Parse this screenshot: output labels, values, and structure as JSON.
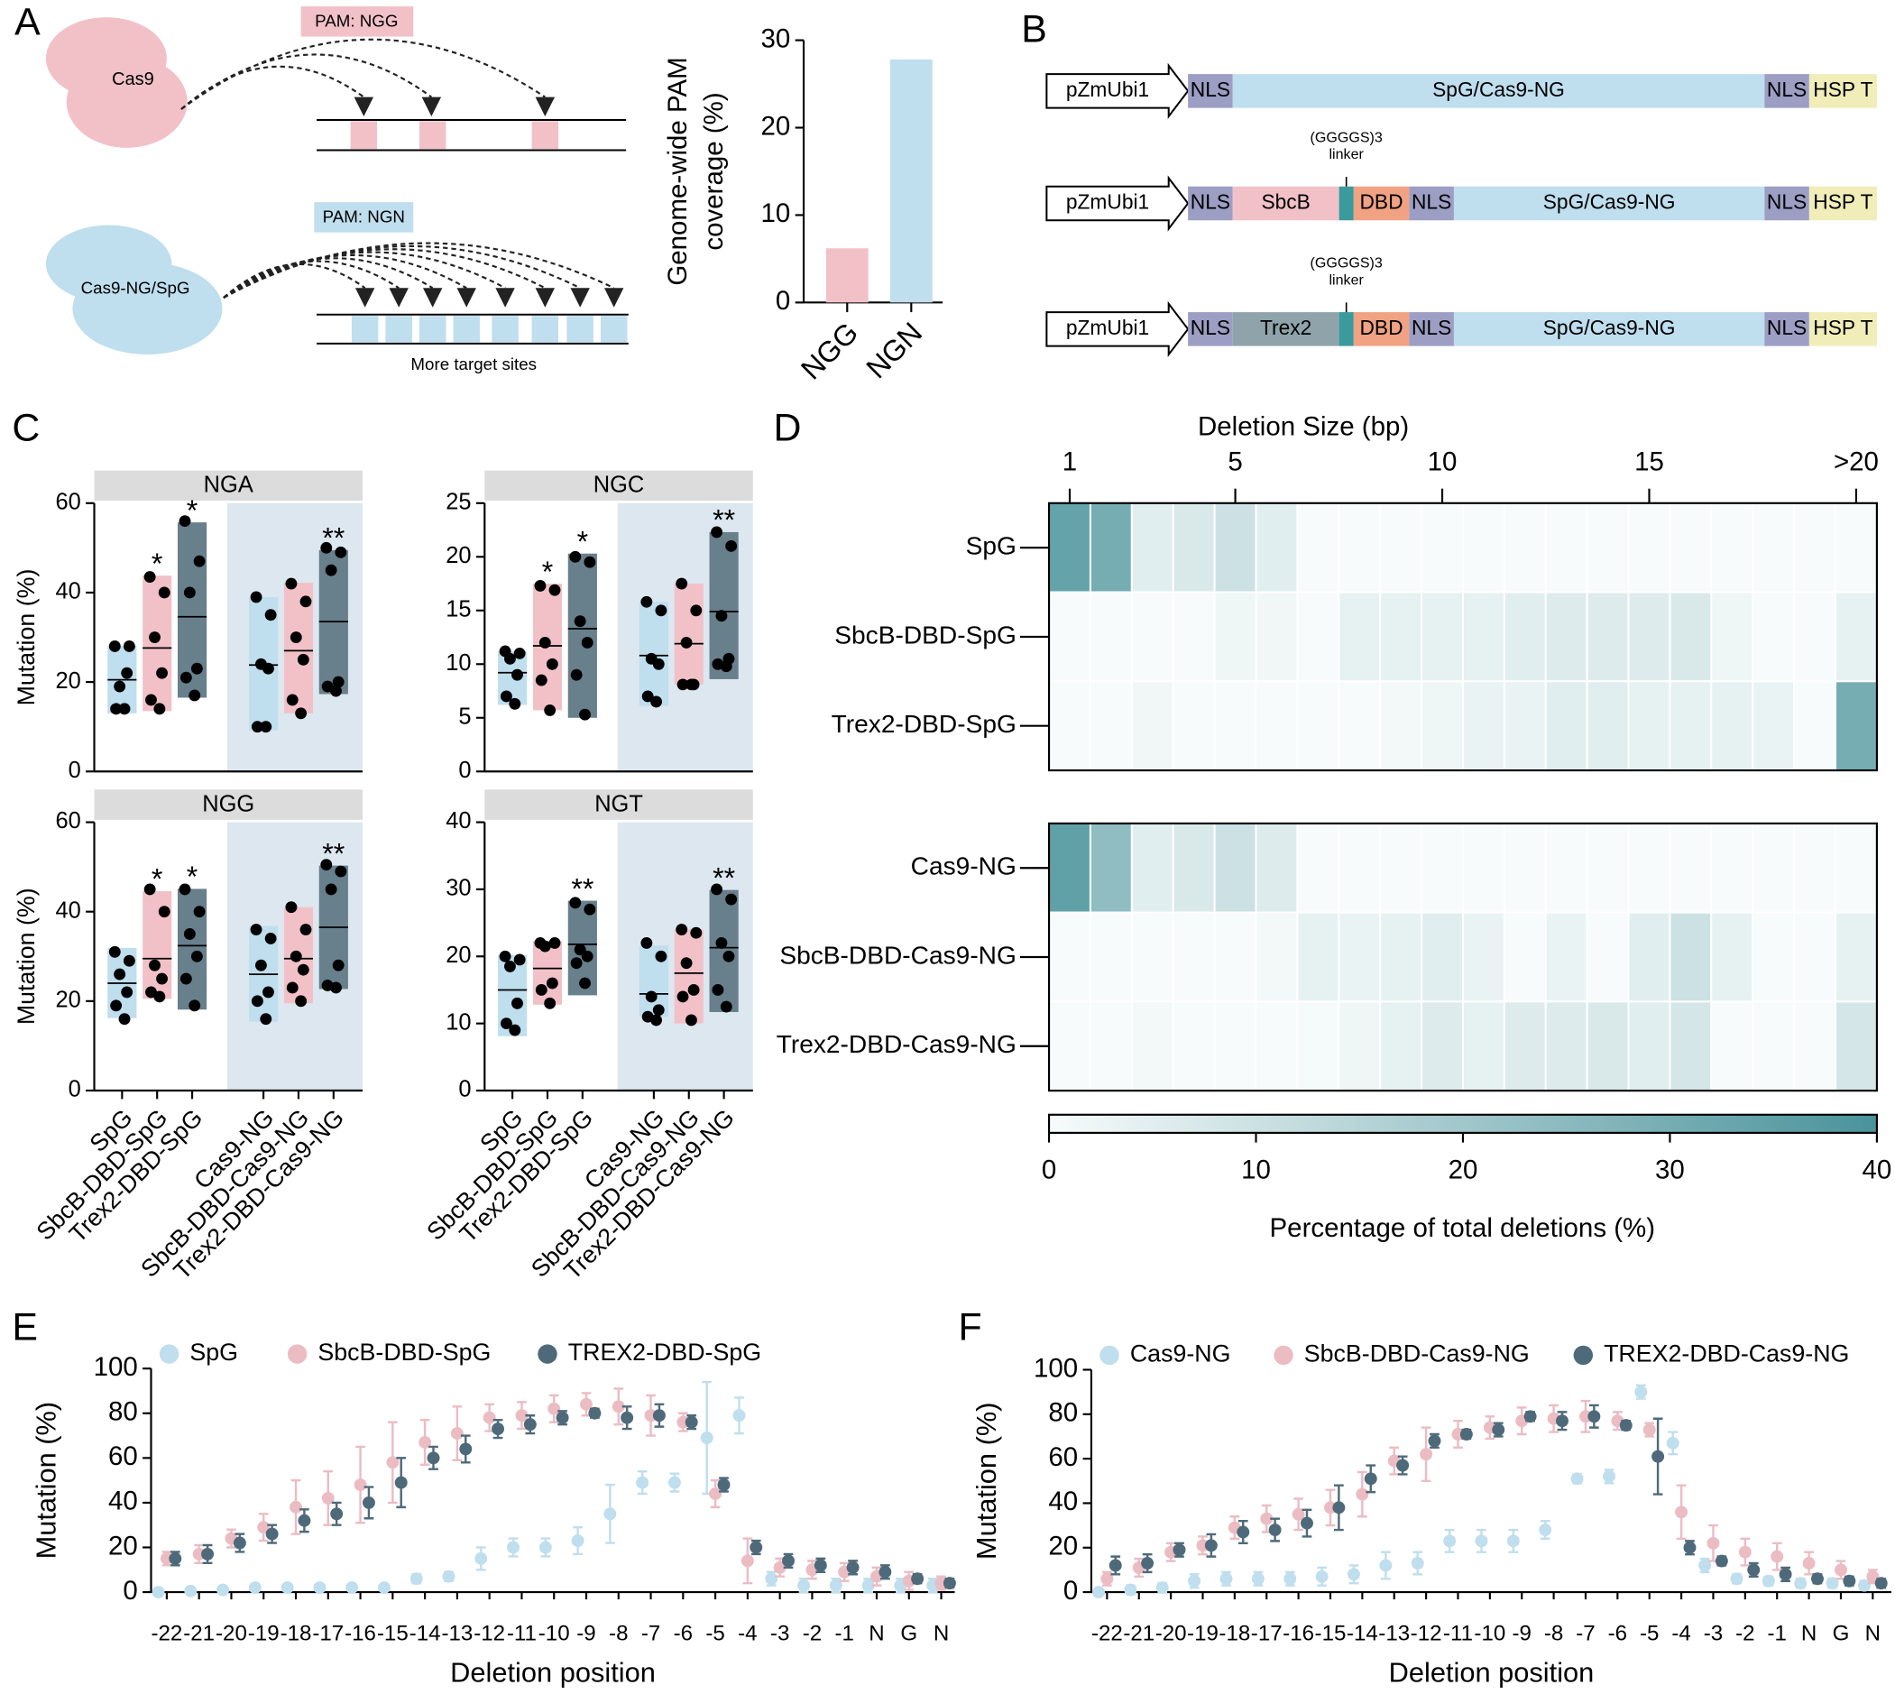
{
  "panel_labels": [
    "A",
    "B",
    "C",
    "D",
    "E",
    "F"
  ],
  "diagram_a": {
    "top": {
      "enzyme": "Cas9",
      "pam": "PAM: NGG"
    },
    "bottom": {
      "enzyme": "Cas9-NG/SpG",
      "pam": "PAM: NGN",
      "note": "More target sites"
    }
  },
  "diagram_b": {
    "constructs": [
      {
        "segments": [
          "pZmUbi1",
          "NLS",
          "SpG/Cas9-NG",
          "NLS",
          "HSP T"
        ]
      },
      {
        "segments": [
          "pZmUbi1",
          "NLS",
          "SbcB",
          "DBD",
          "NLS",
          "SpG/Cas9-NG",
          "NLS",
          "HSP T"
        ],
        "linker": [
          "(GGGGS)3",
          "linker"
        ]
      },
      {
        "segments": [
          "pZmUbi1",
          "NLS",
          "Trex2",
          "DBD",
          "NLS",
          "SpG/Cas9-NG",
          "NLS",
          "HSP T"
        ],
        "linker": [
          "(GGGGS)3",
          "linker"
        ]
      }
    ]
  },
  "chart_data": [
    {
      "type": "bar",
      "ylabel": [
        "Genome-wide PAM",
        "coverage (%)"
      ],
      "categories": [
        "NGG",
        "NGN"
      ],
      "values": [
        6.2,
        27.8
      ],
      "colors": [
        "#f2c1c8",
        "#bfdeee"
      ],
      "ylim": [
        0,
        30
      ],
      "yticks": [
        0,
        10,
        20,
        30
      ]
    },
    {
      "type": "floating_bar",
      "title": "NGA",
      "ylabel": "Mutation (%)",
      "ylim": [
        0,
        60
      ],
      "yticks": [
        0,
        20,
        40,
        60
      ],
      "colors": [
        "#bfdeee",
        "#f2c1c8",
        "#687f8c",
        "#bfdeee",
        "#f2c1c8",
        "#687f8c"
      ],
      "low": [
        13,
        13.5,
        16.5,
        9.2,
        13,
        17.3
      ],
      "high": [
        28.1,
        43.8,
        55.7,
        39,
        42.2,
        49.5
      ],
      "mean": [
        20.5,
        27.6,
        34.6,
        23.8,
        27,
        33.5
      ],
      "points": [
        [
          28,
          28,
          19,
          22,
          14,
          14
        ],
        [
          43.5,
          40,
          30,
          22,
          16,
          14
        ],
        [
          56,
          47,
          40,
          23,
          21,
          17
        ],
        [
          39,
          35,
          24,
          23,
          10,
          10
        ],
        [
          42,
          38,
          30,
          25,
          16,
          13
        ],
        [
          50,
          49,
          45,
          20,
          19,
          18
        ]
      ],
      "annotations": [
        null,
        "*",
        "*",
        null,
        null,
        "**"
      ]
    },
    {
      "type": "floating_bar",
      "title": "NGC",
      "ylim": [
        0,
        25
      ],
      "yticks": [
        0,
        5,
        10,
        15,
        20,
        25
      ],
      "colors": [
        "#bfdeee",
        "#f2c1c8",
        "#687f8c",
        "#bfdeee",
        "#f2c1c8",
        "#687f8c"
      ],
      "low": [
        6.2,
        5.7,
        5,
        6.1,
        8.1,
        8.6
      ],
      "high": [
        11.2,
        17.5,
        20.3,
        15.8,
        17.5,
        22.3
      ],
      "mean": [
        9.2,
        11.7,
        13.3,
        10.8,
        11.9,
        14.9
      ],
      "points": [
        [
          11.2,
          11,
          10.5,
          9,
          7,
          6.3
        ],
        [
          17.3,
          16.9,
          12,
          10,
          8.5,
          5.7
        ],
        [
          20,
          19.5,
          14,
          12,
          9,
          5.3
        ],
        [
          15.8,
          15,
          10.5,
          10,
          7,
          6.5
        ],
        [
          17.5,
          15,
          12,
          8.1,
          8.1,
          8.1
        ],
        [
          22.3,
          21,
          14.5,
          10.5,
          10,
          9.8
        ]
      ],
      "annotations": [
        null,
        "*",
        "*",
        null,
        null,
        "**"
      ]
    },
    {
      "type": "floating_bar",
      "title": "NGG",
      "ylabel": "Mutation (%)",
      "ylim": [
        0,
        60
      ],
      "yticks": [
        0,
        20,
        40,
        60
      ],
      "categories": [
        "SpG",
        "SbcB-DBD-SpG",
        "Trex2-DBD-SpG",
        "Cas9-NG",
        "SbcB-DBD-Cas9-NG",
        "Trex2-DBD-Cas9-NG"
      ],
      "colors": [
        "#bfdeee",
        "#f2c1c8",
        "#687f8c",
        "#bfdeee",
        "#f2c1c8",
        "#687f8c"
      ],
      "low": [
        16.2,
        20.5,
        18.1,
        15.4,
        19.5,
        22.7
      ],
      "high": [
        31.9,
        44.6,
        45.1,
        36.8,
        41,
        50.3
      ],
      "mean": [
        24,
        29.5,
        32.4,
        26,
        29.5,
        36.5
      ],
      "points": [
        [
          31,
          29,
          26,
          22,
          19,
          16
        ],
        [
          45,
          40,
          28,
          25,
          22,
          21
        ],
        [
          45,
          40,
          35,
          30,
          25,
          19
        ],
        [
          36,
          34,
          28,
          22,
          20,
          16
        ],
        [
          41,
          36,
          30,
          27,
          23,
          20
        ],
        [
          50.5,
          49,
          45,
          28,
          23.5,
          23
        ]
      ],
      "annotations": [
        null,
        "*",
        "*",
        null,
        null,
        "**"
      ]
    },
    {
      "type": "floating_bar",
      "title": "NGT",
      "ylim": [
        0,
        40
      ],
      "yticks": [
        0,
        10,
        20,
        30,
        40
      ],
      "categories": [
        "SpG",
        "SbcB-DBD-SpG",
        "Trex2-DBD-SpG",
        "Cas9-NG",
        "SbcB-DBD-Cas9-NG",
        "Trex2-DBD-Cas9-NG"
      ],
      "colors": [
        "#bfdeee",
        "#f2c1c8",
        "#687f8c",
        "#bfdeee",
        "#f2c1c8",
        "#687f8c"
      ],
      "low": [
        8.1,
        12.8,
        14.2,
        11,
        10,
        11.7
      ],
      "high": [
        20.2,
        22.3,
        28.3,
        21.6,
        24,
        29.9
      ],
      "mean": [
        15,
        18.2,
        21.8,
        14.4,
        17.5,
        21.3
      ],
      "points": [
        [
          20,
          19.5,
          18.5,
          13,
          10,
          9
        ],
        [
          22,
          22,
          21.5,
          16,
          15,
          13
        ],
        [
          28,
          27,
          21,
          20,
          19,
          16
        ],
        [
          22,
          20,
          14,
          12,
          11,
          10.5
        ],
        [
          24,
          23.5,
          19,
          15,
          14,
          10.5
        ],
        [
          30,
          28.5,
          22,
          20,
          15,
          12.5
        ]
      ],
      "annotations": [
        null,
        null,
        "**",
        null,
        null,
        "**"
      ]
    },
    {
      "type": "heatmap",
      "xlabel": "Deletion Size (bp)",
      "x": [
        1,
        2,
        3,
        4,
        5,
        6,
        7,
        8,
        9,
        10,
        11,
        12,
        13,
        14,
        15,
        16,
        17,
        18,
        19,
        20
      ],
      "xlim": [
        0.5,
        20.5
      ],
      "xticks": [
        1,
        5,
        10,
        15,
        {
          "value": 20,
          "label": ">20"
        }
      ],
      "groups": [
        {
          "rows": [
            "SpG",
            "SbcB-DBD-SpG",
            "Trex2-DBD-SpG"
          ],
          "values": [
            [
              34,
              30,
              5,
              7,
              10,
              5,
              0,
              0,
              0,
              0,
              0,
              0,
              0,
              0,
              0,
              0,
              0,
              0,
              0,
              0
            ],
            [
              0,
              0,
              0,
              0,
              2,
              1.5,
              0,
              4,
              4,
              4,
              4,
              5,
              6,
              6,
              6,
              7,
              2,
              0,
              0,
              4
            ],
            [
              0,
              0,
              1.5,
              0,
              0,
              0,
              0,
              0,
              1,
              2,
              3,
              3,
              5,
              5,
              4,
              4,
              4,
              3,
              0,
              30
            ]
          ]
        },
        {
          "rows": [
            "Cas9-NG",
            "SbcB-DBD-Cas9-NG",
            "Trex2-DBD-Cas9-NG"
          ],
          "values": [
            [
              35,
              24,
              5,
              7,
              10,
              6,
              0,
              0,
              0,
              0,
              0,
              0,
              0,
              0,
              0,
              0,
              0,
              0,
              0,
              0
            ],
            [
              0,
              0,
              0,
              0,
              0,
              1,
              4,
              3,
              4,
              5,
              3,
              0,
              3,
              0,
              5,
              10,
              4,
              0,
              0,
              4
            ],
            [
              0,
              0,
              1,
              0,
              0,
              0,
              0.5,
              2,
              4,
              6,
              4,
              6,
              6,
              7,
              5,
              8,
              0,
              0,
              0,
              8
            ]
          ]
        }
      ],
      "clim": [
        0,
        40
      ],
      "cticks": [
        0,
        10,
        20,
        30,
        40
      ],
      "clabel": "Percentage of total deletions (%)",
      "colormap": [
        "#f7fbfb",
        "#4a939b"
      ]
    },
    {
      "type": "errorbar",
      "xlabel": "Deletion position",
      "ylabel": "Mutation (%)",
      "categories": [
        "-22",
        "-21",
        "-20",
        "-19",
        "-18",
        "-17",
        "-16",
        "-15",
        "-14",
        "-13",
        "-12",
        "-11",
        "-10",
        "-9",
        "-8",
        "-7",
        "-6",
        "-5",
        "-4",
        "-3",
        "-2",
        "-1",
        "N",
        "G",
        "N"
      ],
      "highlighted": [
        22,
        23,
        24
      ],
      "highlight_color": "#e0242a",
      "ylim": [
        0,
        100
      ],
      "yticks": [
        0,
        20,
        40,
        60,
        80,
        100
      ],
      "series": [
        {
          "name": "SpG",
          "color": "#bfdeee",
          "values": [
            0,
            0.5,
            1,
            2,
            2,
            2,
            2,
            2,
            6,
            7,
            15,
            20,
            20,
            23,
            35,
            49,
            49,
            69,
            79,
            6,
            3,
            3,
            3,
            3,
            3
          ],
          "errors": [
            1,
            1,
            1,
            1,
            1,
            1,
            1,
            1,
            2,
            2,
            5,
            4,
            4,
            6,
            13,
            5,
            4,
            25,
            8,
            3,
            3,
            3,
            3,
            3,
            3
          ]
        },
        {
          "name": "SbcB-DBD-SpG",
          "color": "#ecbcc3",
          "values": [
            15,
            17,
            24,
            29,
            38,
            42,
            48,
            58,
            67,
            71,
            78,
            79,
            82,
            84,
            83,
            79,
            76,
            44,
            14,
            11,
            10,
            9,
            7,
            5,
            4
          ],
          "errors": [
            3,
            4,
            4,
            6,
            12,
            12,
            17,
            18,
            10,
            12,
            6,
            6,
            6,
            5,
            8,
            9,
            4,
            6,
            10,
            4,
            4,
            4,
            4,
            4,
            3
          ]
        },
        {
          "name": "TREX2-DBD-SpG",
          "color": "#4e6a7a",
          "values": [
            15,
            17,
            22,
            26,
            32,
            35,
            40,
            49,
            60,
            64,
            73,
            75,
            78,
            80,
            78,
            79,
            76,
            48,
            20,
            14,
            12,
            11,
            9,
            6,
            4
          ],
          "errors": [
            3,
            4,
            4,
            4,
            5,
            5,
            7,
            11,
            5,
            6,
            4,
            4,
            3,
            2,
            5,
            5,
            3,
            3,
            3,
            3,
            3,
            3,
            3,
            2,
            2
          ]
        }
      ]
    },
    {
      "type": "errorbar",
      "xlabel": "Deletion position",
      "ylabel": "Mutation (%)",
      "categories": [
        "-22",
        "-21",
        "-20",
        "-19",
        "-18",
        "-17",
        "-16",
        "-15",
        "-14",
        "-13",
        "-12",
        "-11",
        "-10",
        "-9",
        "-8",
        "-7",
        "-6",
        "-5",
        "-4",
        "-3",
        "-2",
        "-1",
        "N",
        "G",
        "N"
      ],
      "highlighted": [
        22,
        23,
        24
      ],
      "highlight_color": "#e0242a",
      "ylim": [
        0,
        100
      ],
      "yticks": [
        0,
        20,
        40,
        60,
        80,
        100
      ],
      "series": [
        {
          "name": "Cas9-NG",
          "color": "#bfdeee",
          "values": [
            0,
            1,
            2,
            5,
            6,
            6,
            6,
            7,
            8,
            12,
            13,
            23,
            23,
            23,
            28,
            51,
            52,
            90,
            67,
            12,
            6,
            5,
            4,
            4,
            3
          ],
          "errors": [
            1,
            2,
            2,
            3,
            3,
            3,
            3,
            4,
            4,
            6,
            5,
            5,
            5,
            5,
            4,
            2,
            3,
            3,
            5,
            3,
            2,
            2,
            2,
            2,
            2
          ]
        },
        {
          "name": "SbcB-DBD-Cas9-NG",
          "color": "#ecbcc3",
          "values": [
            6,
            11,
            18,
            21,
            29,
            33,
            35,
            38,
            44,
            59,
            62,
            71,
            74,
            77,
            78,
            79,
            77,
            73,
            36,
            22,
            18,
            16,
            13,
            10,
            7
          ],
          "errors": [
            3,
            4,
            4,
            4,
            5,
            6,
            7,
            8,
            10,
            6,
            12,
            6,
            5,
            6,
            6,
            7,
            4,
            3,
            12,
            8,
            6,
            6,
            5,
            4,
            3
          ]
        },
        {
          "name": "TREX2-DBD-Cas9-NG",
          "color": "#4e6a7a",
          "values": [
            12,
            13,
            19,
            21,
            27,
            28,
            31,
            38,
            51,
            57,
            68,
            71,
            73,
            79,
            77,
            79,
            75,
            61,
            20,
            14,
            10,
            8,
            6,
            5,
            4
          ],
          "errors": [
            4,
            4,
            3,
            5,
            5,
            5,
            6,
            10,
            6,
            4,
            3,
            2,
            3,
            2,
            4,
            5,
            2,
            17,
            3,
            2,
            3,
            3,
            2,
            2,
            2
          ]
        }
      ]
    }
  ]
}
